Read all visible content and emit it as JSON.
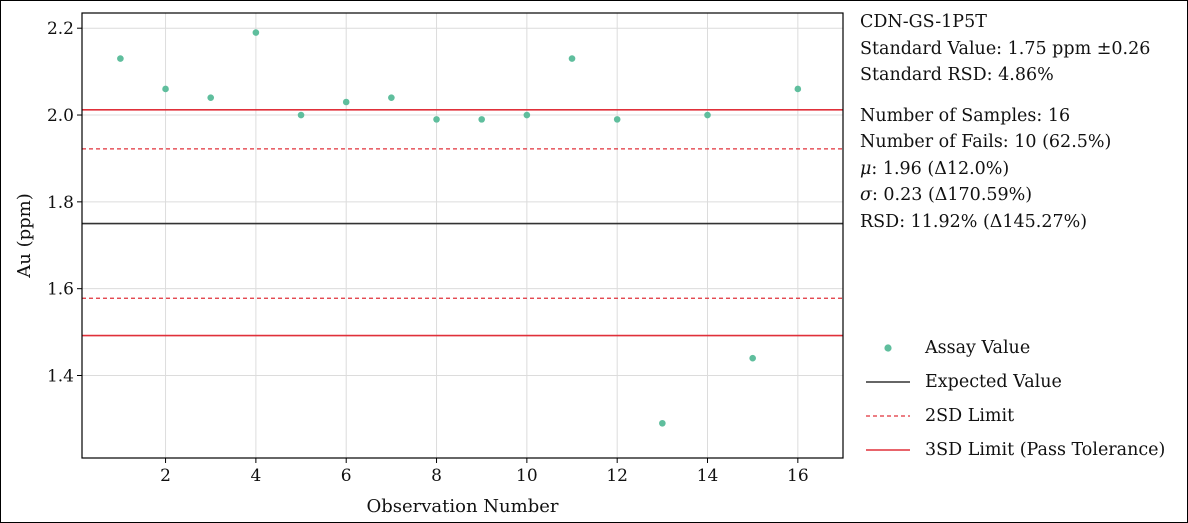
{
  "chart_data": {
    "type": "scatter",
    "title": "",
    "xlabel": "Observation Number",
    "ylabel": "Au (ppm)",
    "xlim": [
      0.15,
      17.0
    ],
    "ylim": [
      1.21,
      2.235
    ],
    "xticks": [
      2,
      4,
      6,
      8,
      10,
      12,
      14,
      16
    ],
    "yticks": [
      1.4,
      1.6,
      1.8,
      2.0,
      2.2
    ],
    "xtick_labels": [
      "2",
      "4",
      "6",
      "8",
      "10",
      "12",
      "14",
      "16"
    ],
    "ytick_labels": [
      "1.4",
      "1.6",
      "1.8",
      "2.0",
      "2.2"
    ],
    "grid": true,
    "series": [
      {
        "name": "Assay Value",
        "color": "#5fbe9d",
        "x": [
          1,
          2,
          3,
          4,
          5,
          6,
          7,
          8,
          9,
          10,
          11,
          12,
          13,
          14,
          15,
          16
        ],
        "y": [
          2.13,
          2.06,
          2.04,
          2.19,
          2.0,
          2.03,
          2.04,
          1.99,
          1.99,
          2.0,
          2.13,
          1.99,
          1.29,
          2.0,
          1.44,
          2.06
        ]
      }
    ],
    "reference_lines": [
      {
        "name": "Expected Value",
        "y": 1.75,
        "color": "#333333",
        "style": "solid"
      },
      {
        "name": "2SD Limit",
        "y": 1.922,
        "color": "#e0303a",
        "style": "dashed"
      },
      {
        "name": "2SD Limit",
        "y": 1.578,
        "color": "#e0303a",
        "style": "dashed"
      },
      {
        "name": "3SD Limit (Pass Tolerance)",
        "y": 2.012,
        "color": "#e0303a",
        "style": "solid"
      },
      {
        "name": "3SD Limit (Pass Tolerance)",
        "y": 1.492,
        "color": "#e0303a",
        "style": "solid"
      }
    ]
  },
  "info": {
    "standard_name": "CDN-GS-1P5T",
    "standard_value": "Standard Value: 1.75 ppm ±0.26",
    "standard_rsd": "Standard RSD: 4.86%",
    "num_samples": "Number of Samples: 16",
    "num_fails": "Number of Fails: 10 (62.5%)",
    "mu": "1.96 (Δ12.0%)",
    "sigma": "0.23 (Δ170.59%)",
    "rsd": "RSD: 11.92% (Δ145.27%)"
  },
  "legend": {
    "placement": "right",
    "items": [
      {
        "label": "Assay Value",
        "kind": "marker",
        "color": "#5fbe9d"
      },
      {
        "label": "Expected Value",
        "kind": "line",
        "color": "#333333",
        "style": "solid"
      },
      {
        "label": "2SD Limit",
        "kind": "line",
        "color": "#e0303a",
        "style": "dashed"
      },
      {
        "label": "3SD Limit (Pass Tolerance)",
        "kind": "line",
        "color": "#e0303a",
        "style": "solid"
      }
    ]
  }
}
